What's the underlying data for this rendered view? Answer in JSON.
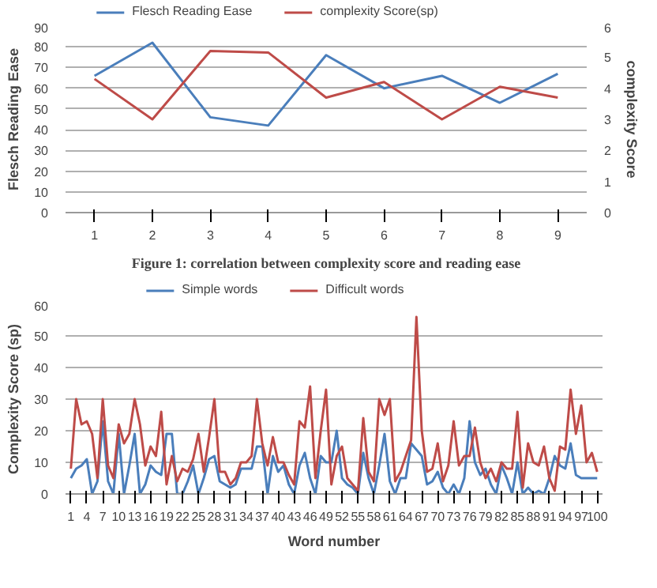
{
  "chart_data": [
    {
      "type": "line",
      "categories": [
        "1",
        "2",
        "3",
        "4",
        "5",
        "6",
        "7",
        "8",
        "9"
      ],
      "ylabel": "Flesch Reading Ease",
      "y2label": "complexity Score",
      "ylim": [
        0,
        90
      ],
      "yticks": [
        0,
        10,
        20,
        30,
        40,
        50,
        60,
        70,
        80,
        90
      ],
      "y2lim": [
        0,
        6
      ],
      "y2ticks": [
        0,
        1,
        2,
        3,
        4,
        5,
        6
      ],
      "grid": "y",
      "legend": "top",
      "annotations": [
        "Figure 1: correlation between complexity score and reading ease"
      ],
      "series": [
        {
          "name": "Flesch Reading Ease",
          "color": "#4a7ebb",
          "values": [
            66,
            82,
            46,
            42,
            76,
            60,
            66,
            53,
            67
          ]
        },
        {
          "name": "complexity Score(sp)",
          "color": "#be4b48",
          "axis": "y2",
          "values": [
            4.3,
            3.0,
            5.2,
            5.15,
            3.7,
            4.2,
            3.0,
            4.05,
            3.7
          ]
        }
      ]
    },
    {
      "type": "line",
      "xlabel": "Word number",
      "ylabel": "Complexity Score (sp)",
      "ylim": [
        0,
        60
      ],
      "yticks": [
        0,
        10,
        20,
        30,
        40,
        50,
        60
      ],
      "xlim": [
        0,
        101
      ],
      "xticks": [
        1,
        4,
        7,
        10,
        13,
        16,
        19,
        22,
        25,
        28,
        31,
        34,
        37,
        40,
        43,
        46,
        49,
        52,
        55,
        58,
        61,
        64,
        67,
        70,
        73,
        76,
        79,
        82,
        85,
        88,
        91,
        94,
        97,
        100
      ],
      "grid": "y",
      "legend": "top",
      "x": [
        1,
        2,
        3,
        4,
        5,
        6,
        7,
        8,
        9,
        10,
        11,
        12,
        13,
        14,
        15,
        16,
        17,
        18,
        19,
        20,
        21,
        22,
        23,
        24,
        25,
        26,
        27,
        28,
        29,
        30,
        31,
        32,
        33,
        34,
        35,
        36,
        37,
        38,
        39,
        40,
        41,
        42,
        43,
        44,
        45,
        46,
        47,
        48,
        49,
        50,
        51,
        52,
        53,
        54,
        55,
        56,
        57,
        58,
        59,
        60,
        61,
        62,
        63,
        64,
        65,
        66,
        67,
        68,
        69,
        70,
        71,
        72,
        73,
        74,
        75,
        76,
        77,
        78,
        79,
        80,
        81,
        82,
        83,
        84,
        85,
        86,
        87,
        88,
        89,
        90,
        91,
        92,
        93,
        94,
        95,
        96,
        97,
        98,
        99,
        100
      ],
      "series": [
        {
          "name": "Simple words",
          "color": "#4a7ebb",
          "values": [
            5,
            8,
            9,
            11,
            0,
            4,
            23,
            4,
            0,
            19,
            0,
            9,
            19,
            0,
            3,
            9,
            7,
            6,
            19,
            19,
            0,
            0,
            4,
            9,
            0,
            5,
            11,
            12,
            4,
            3,
            2,
            3,
            8,
            8,
            8,
            15,
            15,
            0,
            12,
            7,
            9,
            3,
            0,
            9,
            13,
            5,
            0,
            12,
            10,
            10,
            20,
            5,
            3,
            2,
            0,
            13,
            5,
            0,
            9,
            19,
            4,
            0,
            5,
            5,
            16,
            14,
            12,
            3,
            4,
            7,
            2,
            0,
            3,
            0,
            5,
            23,
            10,
            6,
            8,
            3,
            0,
            9,
            5,
            0,
            10,
            0,
            2,
            0,
            1,
            0,
            5,
            12,
            9,
            8,
            16,
            6,
            5,
            5,
            5,
            5
          ]
        },
        {
          "name": "Difficult words",
          "color": "#be4b48",
          "values": [
            8,
            30,
            22,
            23,
            19,
            5,
            30,
            9,
            5,
            22,
            16,
            19,
            30,
            22,
            9,
            15,
            12,
            26,
            3,
            12,
            4,
            8,
            7,
            11,
            19,
            7,
            18,
            30,
            7,
            7,
            3,
            5,
            10,
            10,
            12,
            30,
            16,
            9,
            18,
            10,
            10,
            6,
            3,
            23,
            21,
            34,
            5,
            20,
            33,
            3,
            12,
            15,
            5,
            3,
            1,
            24,
            7,
            4,
            30,
            25,
            30,
            4,
            7,
            12,
            17,
            56,
            20,
            7,
            8,
            16,
            4,
            9,
            23,
            9,
            12,
            12,
            21,
            10,
            5,
            8,
            4,
            10,
            8,
            8,
            26,
            2,
            16,
            10,
            9,
            15,
            5,
            1,
            15,
            14,
            33,
            19,
            28,
            10,
            13,
            7
          ]
        }
      ]
    }
  ]
}
